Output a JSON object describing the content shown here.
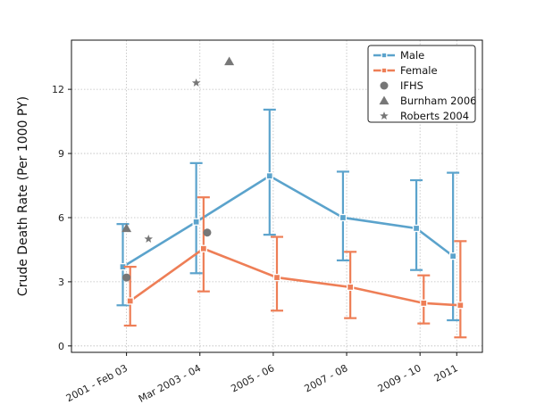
{
  "chart_data": {
    "type": "line",
    "ylabel": "Crude Death Rate (Per 1000 PY)",
    "xlabel": "",
    "ylim": [
      -0.3,
      14.3
    ],
    "yticks": [
      0,
      3,
      6,
      9,
      12
    ],
    "xlim": [
      2000.5,
      2011.7
    ],
    "xticks": [
      {
        "x": 2002,
        "label": "2001 - Feb 03"
      },
      {
        "x": 2004,
        "label": "Mar 2003 - 04"
      },
      {
        "x": 2006,
        "label": "2005 - 06"
      },
      {
        "x": 2008,
        "label": "2007 - 08"
      },
      {
        "x": 2010,
        "label": "2009 - 10"
      },
      {
        "x": 2011,
        "label": "2011"
      }
    ],
    "grid": true,
    "legend_position": "top-right",
    "series": [
      {
        "name": "Male",
        "kind": "line-errorbar",
        "color": "#5ba3cc",
        "x": [
          2001.9,
          2003.9,
          2005.9,
          2007.9,
          2009.9,
          2010.9
        ],
        "y": [
          3.7,
          5.8,
          7.95,
          6.0,
          5.5,
          4.2
        ],
        "err_low": [
          1.9,
          3.4,
          5.2,
          4.0,
          3.55,
          1.2
        ],
        "err_high": [
          5.7,
          8.55,
          11.05,
          8.15,
          7.75,
          8.1
        ]
      },
      {
        "name": "Female",
        "kind": "line-errorbar",
        "color": "#ee7e56",
        "x": [
          2002.1,
          2004.1,
          2006.1,
          2008.1,
          2010.1,
          2011.1
        ],
        "y": [
          2.1,
          4.55,
          3.2,
          2.75,
          2.0,
          1.9
        ],
        "err_low": [
          0.95,
          2.55,
          1.65,
          1.3,
          1.05,
          0.4
        ],
        "err_high": [
          3.7,
          6.95,
          5.1,
          4.4,
          3.3,
          4.9
        ]
      },
      {
        "name": "IFHS",
        "kind": "scatter",
        "marker": "circle",
        "color": "#777777",
        "x": [
          2002.0,
          2004.2
        ],
        "y": [
          3.2,
          5.3
        ]
      },
      {
        "name": "Burnham 2006",
        "kind": "scatter",
        "marker": "triangle",
        "color": "#777777",
        "x": [
          2002.0,
          2004.8
        ],
        "y": [
          5.5,
          13.3
        ]
      },
      {
        "name": "Roberts 2004",
        "kind": "scatter",
        "marker": "star",
        "color": "#777777",
        "x": [
          2002.6,
          2003.9
        ],
        "y": [
          5.0,
          12.3
        ]
      }
    ]
  }
}
